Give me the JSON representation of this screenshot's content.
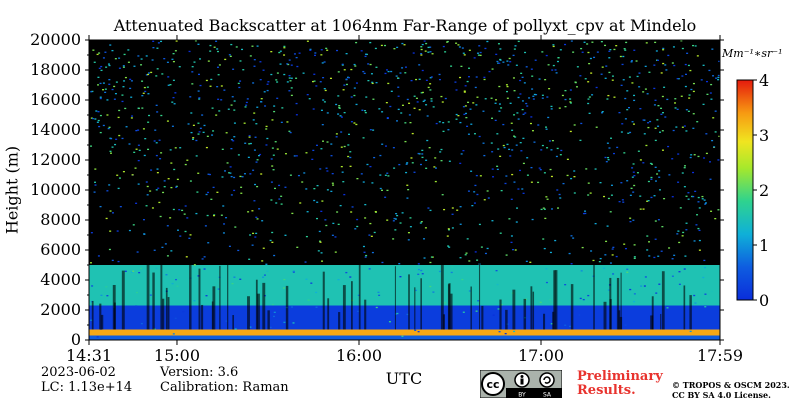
{
  "chart_data": {
    "type": "heatmap",
    "title": "Attenuated Backscatter at 1064nm Far-Range of pollyxt_cpv at Mindelo",
    "xlabel": "UTC",
    "ylabel": "Height (m)",
    "x_ticks": [
      "14:31",
      "15:00",
      "16:00",
      "17:00",
      "17:59"
    ],
    "y_ticks": [
      0,
      2000,
      4000,
      6000,
      8000,
      10000,
      12000,
      14000,
      16000,
      18000,
      20000
    ],
    "ylim": [
      0,
      20000
    ],
    "xlim": [
      "14:31",
      "17:59"
    ],
    "colorbar": {
      "unit": "Mm⁻¹∗sr⁻¹",
      "ticks": [
        0,
        1,
        2,
        3,
        4
      ],
      "range": [
        0,
        4
      ],
      "colormap": "jet"
    },
    "layers": [
      {
        "from_m": 0,
        "to_m": 300,
        "level": 0.6
      },
      {
        "from_m": 300,
        "to_m": 700,
        "level": 3.3
      },
      {
        "from_m": 700,
        "to_m": 2300,
        "level": 0.2
      },
      {
        "from_m": 2300,
        "to_m": 5000,
        "level": 1.5
      },
      {
        "from_m": 5000,
        "to_m": 20000,
        "level": 0.0
      }
    ],
    "background": "#000000"
  },
  "meta": {
    "date": "2023-06-02",
    "lc": "LC: 1.13e+14",
    "version": "Version: 3.6",
    "calibration": "Calibration: Raman",
    "preliminary_1": "Preliminary",
    "preliminary_2": "Results.",
    "copyright_1": "© TROPOS & OSCM 2023.",
    "copyright_2": "CC BY SA 4.0 License.",
    "cc_badge": [
      "BY",
      "SA"
    ]
  }
}
